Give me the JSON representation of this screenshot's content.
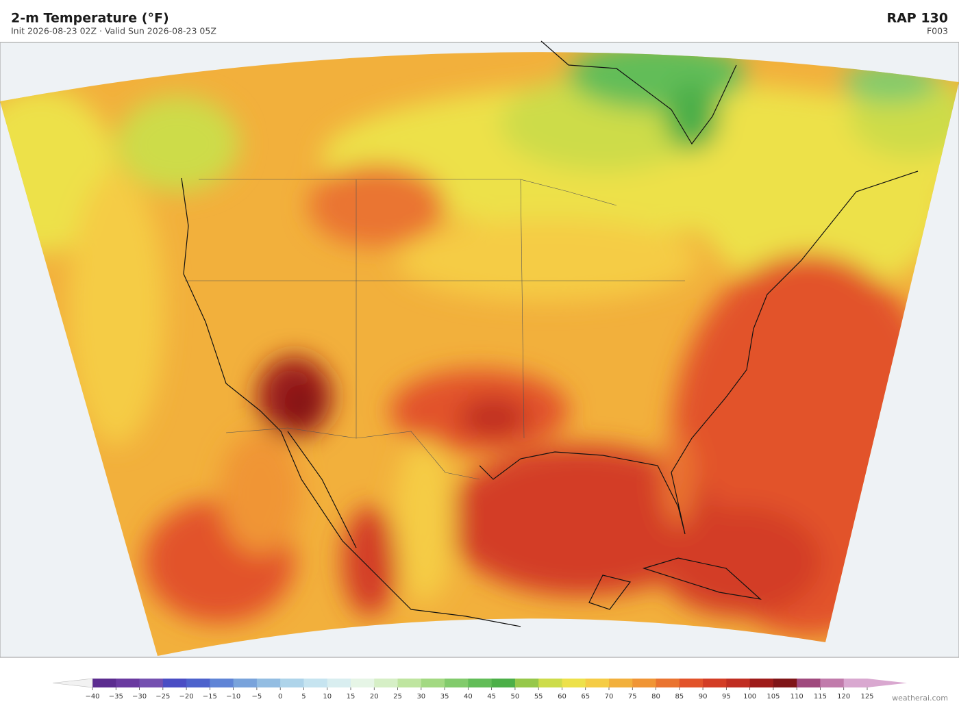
{
  "header": {
    "title": "2-m Temperature  (°F)",
    "subtitle": "Init 2026-08-23 02Z  ·  Valid Sun 2026-08-23 05Z",
    "model": "RAP  130",
    "forecast_hour": "F003"
  },
  "colorbar": {
    "ticks": [
      {
        "value": -40,
        "label": "−40"
      },
      {
        "value": -35,
        "label": "−35"
      },
      {
        "value": -30,
        "label": "−30"
      },
      {
        "value": -25,
        "label": "−25"
      },
      {
        "value": -20,
        "label": "−20"
      },
      {
        "value": -15,
        "label": "−15"
      },
      {
        "value": -10,
        "label": "−10"
      },
      {
        "value": -5,
        "label": "−5"
      },
      0,
      5,
      10,
      15,
      20,
      25,
      30,
      35,
      40,
      45,
      50,
      55,
      60,
      65,
      70,
      75,
      80,
      85,
      90,
      95,
      100,
      105,
      110,
      115,
      120,
      125
    ],
    "colors": [
      "#5b2c8f",
      "#6a3aa0",
      "#7450b0",
      "#4a4dc4",
      "#4d62cc",
      "#5f84d6",
      "#79a3db",
      "#93bde2",
      "#aed4ea",
      "#c6e4f0",
      "#d9eef0",
      "#e6f5e6",
      "#d6efc6",
      "#bfe5a0",
      "#a3d982",
      "#82cb6c",
      "#62bd58",
      "#4caf48",
      "#96c84a",
      "#cddc4a",
      "#ede14a",
      "#f5cc45",
      "#f2b03c",
      "#f09535",
      "#ea7430",
      "#e2532a",
      "#d33d25",
      "#c02e22",
      "#9e1c1a",
      "#7f1518",
      "#a04a7e",
      "#c17bab",
      "#d9a8d0"
    ],
    "under_color": "#f2f2f2",
    "over_color": "#d9a8d0"
  },
  "credit": "weatherai.com"
}
